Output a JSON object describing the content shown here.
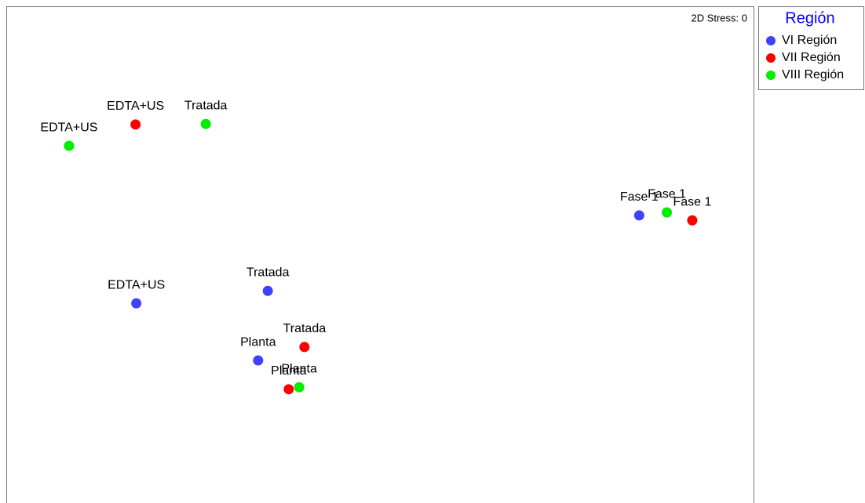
{
  "chart_data": {
    "type": "scatter",
    "annotation": "2D Stress: 0",
    "legend_title": "Región",
    "legend_position": "upper right outside",
    "xlim": [
      0,
      100
    ],
    "ylim": [
      0,
      100
    ],
    "series": [
      {
        "name": "VI Región",
        "color": "#4040ff",
        "labels": [
          "EDTA+US",
          "Tratada",
          "Planta",
          "Fase 1"
        ],
        "x": [
          17.4,
          35.0,
          33.7,
          84.7
        ],
        "values": [
          40.2,
          42.7,
          28.7,
          57.9
        ]
      },
      {
        "name": "VII Región",
        "color": "#ff0000",
        "labels": [
          "EDTA+US",
          "Tratada",
          "Planta",
          "Fase 1"
        ],
        "x": [
          17.3,
          39.9,
          37.8,
          91.8
        ],
        "values": [
          76.2,
          31.4,
          22.9,
          56.9
        ]
      },
      {
        "name": "VIII Región",
        "color": "#00ee00",
        "labels": [
          "EDTA+US",
          "Tratada",
          "Planta",
          "Fase 1"
        ],
        "x": [
          8.4,
          26.7,
          39.2,
          88.4
        ],
        "values": [
          71.9,
          76.3,
          23.3,
          58.5
        ]
      }
    ]
  }
}
